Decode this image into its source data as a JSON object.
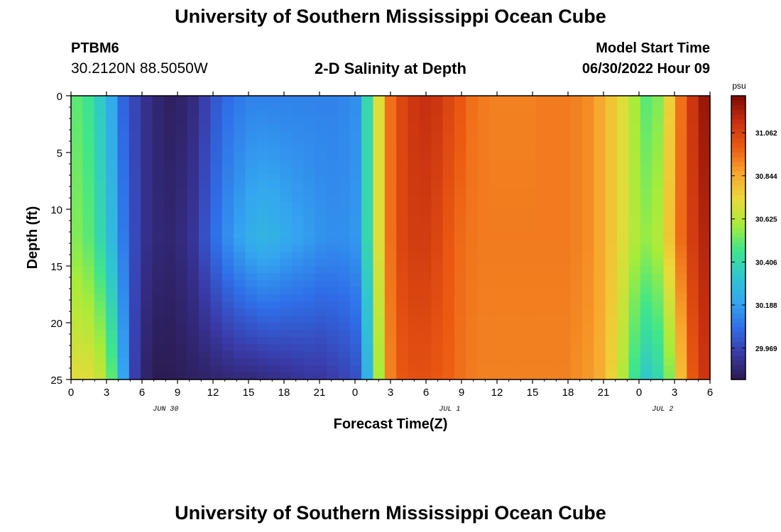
{
  "header": {
    "title": "University of Southern Mississippi Ocean Cube",
    "station_id": "PTBM6",
    "coordinates": "30.2120N  88.5050W",
    "subtitle": "2-D Salinity at Depth",
    "model_start_label": "Model Start Time",
    "model_start_value": "06/30/2022 Hour 09"
  },
  "footer": {
    "title": "University of Southern Mississippi Ocean Cube"
  },
  "chart_data": {
    "type": "heatmap",
    "title": "2-D Salinity at Depth",
    "xlabel": "Forecast Time(Z)",
    "ylabel": "Depth (ft)",
    "x_tick_labels": [
      "0",
      "3",
      "6",
      "9",
      "12",
      "15",
      "18",
      "21",
      "0",
      "3",
      "6",
      "9",
      "12",
      "15",
      "18",
      "21",
      "0",
      "3",
      "6"
    ],
    "date_labels": [
      "JUN 30",
      "JUL 1",
      "JUL 2"
    ],
    "y_tick_labels": [
      "0",
      "5",
      "10",
      "15",
      "20",
      "25"
    ],
    "xlim_hours": [
      0,
      54
    ],
    "ylim_ft": [
      0,
      25
    ],
    "y_inverted": true,
    "colorbar": {
      "unit": "psu",
      "tick_labels": [
        "31.062",
        "30.844",
        "30.625",
        "30.406",
        "30.188",
        "29.969"
      ],
      "range": [
        29.81,
        31.25
      ]
    },
    "colors": {
      "scale": [
        "#2b1a4e",
        "#3a3aa8",
        "#2f6ee8",
        "#34a6f0",
        "#2fc6cf",
        "#3fe68a",
        "#a6ec3a",
        "#ecd93a",
        "#f8a52e",
        "#ec5a12",
        "#c73010",
        "#7e0a04"
      ]
    },
    "salinity_profile": {
      "times_hours": [
        0,
        1,
        2,
        3,
        4,
        5,
        6,
        7,
        8,
        9,
        10,
        11,
        12,
        13,
        14,
        15,
        16,
        17,
        18,
        19,
        20,
        21,
        22,
        23,
        24,
        25,
        26,
        27,
        28,
        29,
        30,
        31,
        32,
        33,
        34,
        35,
        36,
        37,
        38,
        39,
        40,
        41,
        42,
        43,
        44,
        45,
        46,
        47,
        48,
        49,
        50,
        51,
        52,
        53,
        54
      ],
      "surface_psu": [
        30.5,
        30.45,
        30.35,
        30.22,
        30.05,
        29.97,
        29.9,
        29.86,
        29.84,
        29.85,
        29.88,
        29.95,
        30.02,
        30.07,
        30.1,
        30.12,
        30.12,
        30.12,
        30.12,
        30.12,
        30.12,
        30.12,
        30.12,
        30.13,
        30.15,
        30.4,
        30.7,
        30.95,
        31.05,
        31.1,
        31.12,
        31.1,
        31.05,
        31.0,
        30.95,
        30.93,
        30.92,
        30.92,
        30.92,
        30.92,
        30.93,
        30.93,
        30.93,
        30.92,
        30.9,
        30.85,
        30.78,
        30.7,
        30.6,
        30.5,
        30.55,
        30.75,
        30.95,
        31.1,
        31.2
      ],
      "mid_psu": [
        30.55,
        30.5,
        30.4,
        30.28,
        30.1,
        29.98,
        29.9,
        29.87,
        29.86,
        29.88,
        29.92,
        30.0,
        30.08,
        30.15,
        30.2,
        30.24,
        30.26,
        30.25,
        30.22,
        30.2,
        30.18,
        30.16,
        30.15,
        30.15,
        30.17,
        30.4,
        30.7,
        30.95,
        31.05,
        31.08,
        31.08,
        31.05,
        31.0,
        30.96,
        30.94,
        30.93,
        30.93,
        30.93,
        30.93,
        30.93,
        30.93,
        30.93,
        30.93,
        30.92,
        30.9,
        30.85,
        30.78,
        30.7,
        30.62,
        30.58,
        30.62,
        30.78,
        30.96,
        31.08,
        31.15
      ],
      "bottom_psu": [
        30.7,
        30.7,
        30.65,
        30.5,
        30.2,
        29.95,
        29.85,
        29.82,
        29.82,
        29.83,
        29.84,
        29.85,
        29.86,
        29.87,
        29.88,
        29.88,
        29.89,
        29.9,
        29.91,
        29.92,
        29.93,
        29.93,
        29.95,
        29.97,
        30.0,
        30.25,
        30.6,
        30.92,
        31.0,
        31.02,
        31.02,
        31.0,
        30.98,
        30.95,
        30.93,
        30.92,
        30.92,
        30.92,
        30.92,
        30.92,
        30.92,
        30.92,
        30.92,
        30.9,
        30.88,
        30.84,
        30.75,
        30.62,
        30.45,
        30.35,
        30.4,
        30.55,
        30.8,
        31.0,
        31.1
      ]
    }
  }
}
